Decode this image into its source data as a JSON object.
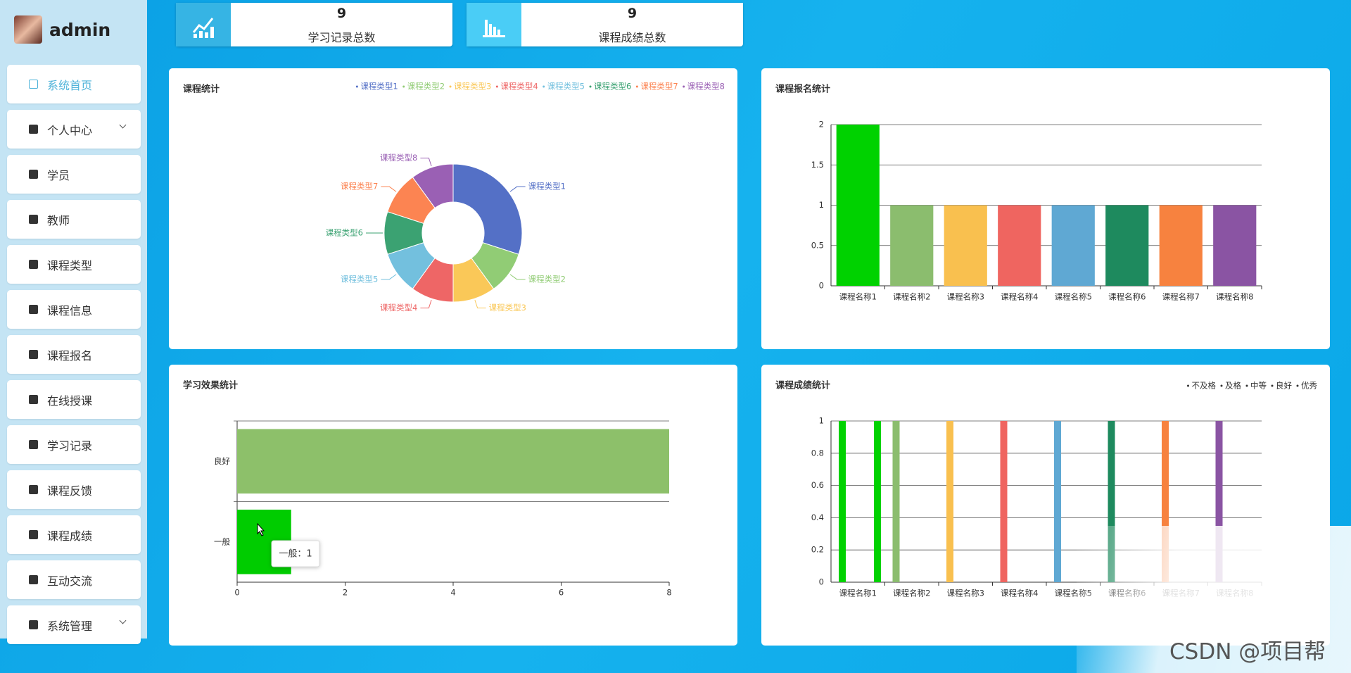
{
  "user": "admin",
  "active": 0,
  "menu": [
    {
      "label": "系统首页",
      "submenu": false
    },
    {
      "label": "个人中心",
      "submenu": true
    },
    {
      "label": "学员",
      "submenu": false
    },
    {
      "label": "教师",
      "submenu": false
    },
    {
      "label": "课程类型",
      "submenu": false
    },
    {
      "label": "课程信息",
      "submenu": false
    },
    {
      "label": "课程报名",
      "submenu": false
    },
    {
      "label": "在线授课",
      "submenu": false
    },
    {
      "label": "学习记录",
      "submenu": false
    },
    {
      "label": "课程反馈",
      "submenu": false
    },
    {
      "label": "课程成绩",
      "submenu": false
    },
    {
      "label": "互动交流",
      "submenu": false
    },
    {
      "label": "系统管理",
      "submenu": true
    }
  ],
  "stats": [
    {
      "value": 9,
      "label": "学习记录总数"
    },
    {
      "value": 9,
      "label": "课程成绩总数"
    }
  ],
  "watermark": "CSDN @项目帮",
  "chart_data": [
    {
      "type": "pie",
      "title": "课程统计",
      "categories": [
        "课程类型1",
        "课程类型2",
        "课程类型3",
        "课程类型4",
        "课程类型5",
        "课程类型6",
        "课程类型7",
        "课程类型8"
      ],
      "values": [
        3,
        1,
        1,
        1,
        1,
        1,
        1,
        1
      ],
      "colors": [
        "#5470c6",
        "#91cc75",
        "#fac858",
        "#ee6666",
        "#73c0de",
        "#3ba272",
        "#fc8452",
        "#9a60b4"
      ],
      "legend": "top-right"
    },
    {
      "type": "bar",
      "title": "课程报名统计",
      "categories": [
        "课程名称1",
        "课程名称2",
        "课程名称3",
        "课程名称4",
        "课程名称5",
        "课程名称6",
        "课程名称7",
        "课程名称8"
      ],
      "values": [
        2,
        1,
        1,
        1,
        1,
        1,
        1,
        1
      ],
      "colors": [
        "#00d200",
        "#8bbd6e",
        "#f9c04f",
        "#ef6560",
        "#5fa8d3",
        "#1e8a5e",
        "#f7823f",
        "#8a54a3"
      ],
      "ylim": [
        0,
        2
      ],
      "yticks": [
        0,
        0.5,
        1,
        1.5,
        2
      ],
      "grid": true
    },
    {
      "type": "hbar",
      "title": "学习效果统计",
      "categories": [
        "一般",
        "良好"
      ],
      "values": [
        1,
        8
      ],
      "colors": [
        "#00cc00",
        "#8dc06a"
      ],
      "xlim": [
        0,
        8
      ],
      "xticks": [
        0,
        2,
        4,
        6,
        8
      ],
      "grid": true,
      "tooltip": "一般：1"
    },
    {
      "type": "grouped_bar",
      "title": "课程成绩统计",
      "categories": [
        "课程名称1",
        "课程名称2",
        "课程名称3",
        "课程名称4",
        "课程名称5",
        "课程名称6",
        "课程名称7",
        "课程名称8"
      ],
      "colors": [
        "#00d200",
        "#8bbd6e",
        "#f9c04f",
        "#ef6560",
        "#5fa8d3",
        "#1e8a5e",
        "#f7823f",
        "#8a54a3"
      ],
      "series": [
        {
          "name": "不及格",
          "values": [
            1,
            1,
            1,
            1,
            1,
            1,
            1,
            1
          ]
        },
        {
          "name": "及格",
          "values": [
            0,
            0,
            0,
            0,
            0,
            0,
            0,
            0
          ]
        },
        {
          "name": "中等",
          "values": [
            0,
            0,
            0,
            0,
            0,
            0,
            0,
            0
          ]
        },
        {
          "name": "良好",
          "values": [
            0,
            0,
            0,
            0,
            0,
            0,
            0,
            0
          ]
        },
        {
          "name": "优秀",
          "values": [
            1,
            0,
            0,
            0,
            0,
            0,
            0,
            0
          ]
        }
      ],
      "ylim": [
        0,
        1
      ],
      "yticks": [
        0,
        0.2,
        0.4,
        0.6,
        0.8,
        1
      ],
      "grid": true,
      "legend": "top-right"
    }
  ]
}
